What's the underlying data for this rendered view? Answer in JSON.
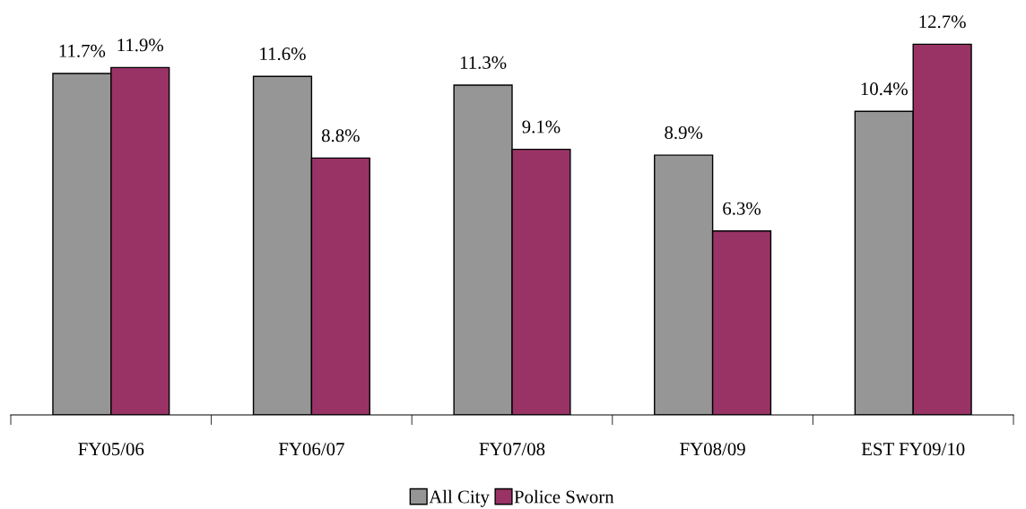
{
  "chart_data": {
    "type": "bar",
    "categories": [
      "FY05/06",
      "FY06/07",
      "FY07/08",
      "FY08/09",
      "EST FY09/10"
    ],
    "series": [
      {
        "name": "All City",
        "color": "#969696",
        "values": [
          11.7,
          11.6,
          11.3,
          8.9,
          10.4
        ],
        "value_labels": [
          "11.7%",
          "11.6%",
          "11.3%",
          "8.9%",
          "10.4%"
        ]
      },
      {
        "name": "Police Sworn",
        "color": "#993366",
        "values": [
          11.9,
          8.8,
          9.1,
          6.3,
          12.7
        ],
        "value_labels": [
          "11.9%",
          "8.8%",
          "9.1%",
          "6.3%",
          "12.7%"
        ]
      }
    ],
    "legend": "bottom",
    "grid": false
  }
}
